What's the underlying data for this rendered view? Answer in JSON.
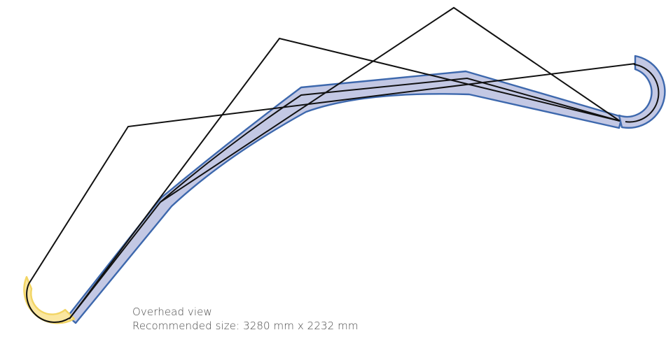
{
  "caption": {
    "view_label": "Overhead view",
    "size_label": "Recommended size: 3280 mm x 2232 mm"
  },
  "colors": {
    "track_fill": "#c3c8e4",
    "track_edge": "#3d68ad",
    "start_fill": "#fbe7a0",
    "start_edge": "#f2d564",
    "lines": "#111111"
  }
}
